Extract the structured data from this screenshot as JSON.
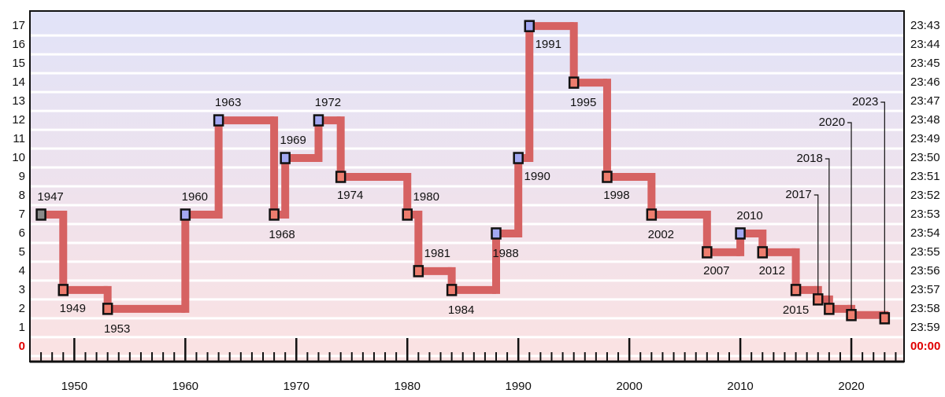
{
  "chart_data": {
    "type": "step",
    "x": [
      1947,
      1949,
      1953,
      1960,
      1963,
      1968,
      1969,
      1972,
      1974,
      1980,
      1981,
      1984,
      1988,
      1990,
      1991,
      1995,
      1998,
      2002,
      2007,
      2010,
      2012,
      2015,
      2017,
      2018,
      2020,
      2023
    ],
    "values": [
      7,
      3,
      2,
      7,
      12,
      7,
      10,
      12,
      9,
      7,
      4,
      3,
      6,
      10,
      17,
      14,
      9,
      7,
      5,
      6,
      5,
      3,
      2.5,
      2,
      1.67,
      1.5
    ],
    "color": "#d66262",
    "point_colors": [
      "#8a8a8a",
      "#ee7d6e",
      "#ee7d6e",
      "#a3a8f2",
      "#a3a8f2",
      "#ee7d6e",
      "#a3a8f2",
      "#a3a8f2",
      "#ee7d6e",
      "#ee7d6e",
      "#ee7d6e",
      "#ee7d6e",
      "#a3a8f2",
      "#a3a8f2",
      "#a3a8f2",
      "#ee7d6e",
      "#ee7d6e",
      "#ee7d6e",
      "#ee7d6e",
      "#a3a8f2",
      "#ee7d6e",
      "#ee7d6e",
      "#ee7d6e",
      "#ee7d6e",
      "#ee7d6e",
      "#ee7d6e"
    ],
    "xlim": [
      1946,
      2024.75
    ],
    "xticks": [
      1950,
      1960,
      1970,
      1980,
      1990,
      2000,
      2010,
      2020
    ],
    "xminor": 1,
    "ylim": [
      -0.8,
      17.8
    ],
    "yticks": [
      0,
      1,
      2,
      3,
      4,
      5,
      6,
      7,
      8,
      9,
      10,
      11,
      12,
      13,
      14,
      15,
      16,
      17
    ],
    "y2lim": [
      -0.8,
      17.8
    ],
    "y2ticks": [
      {
        "value": 0,
        "label": "00:00"
      },
      {
        "value": 1,
        "label": "23:59"
      },
      {
        "value": 2,
        "label": "23:58"
      },
      {
        "value": 3,
        "label": "23:57"
      },
      {
        "value": 4,
        "label": "23:56"
      },
      {
        "value": 5,
        "label": "23:55"
      },
      {
        "value": 6,
        "label": "23:54"
      },
      {
        "value": 7,
        "label": "23:53"
      },
      {
        "value": 8,
        "label": "23:52"
      },
      {
        "value": 9,
        "label": "23:51"
      },
      {
        "value": 10,
        "label": "23:50"
      },
      {
        "value": 11,
        "label": "23:49"
      },
      {
        "value": 12,
        "label": "23:48"
      },
      {
        "value": 13,
        "label": "23:47"
      },
      {
        "value": 14,
        "label": "23:46"
      },
      {
        "value": 15,
        "label": "23:45"
      },
      {
        "value": 16,
        "label": "23:44"
      },
      {
        "value": 17,
        "label": "23:43"
      }
    ],
    "grid": true
  }
}
